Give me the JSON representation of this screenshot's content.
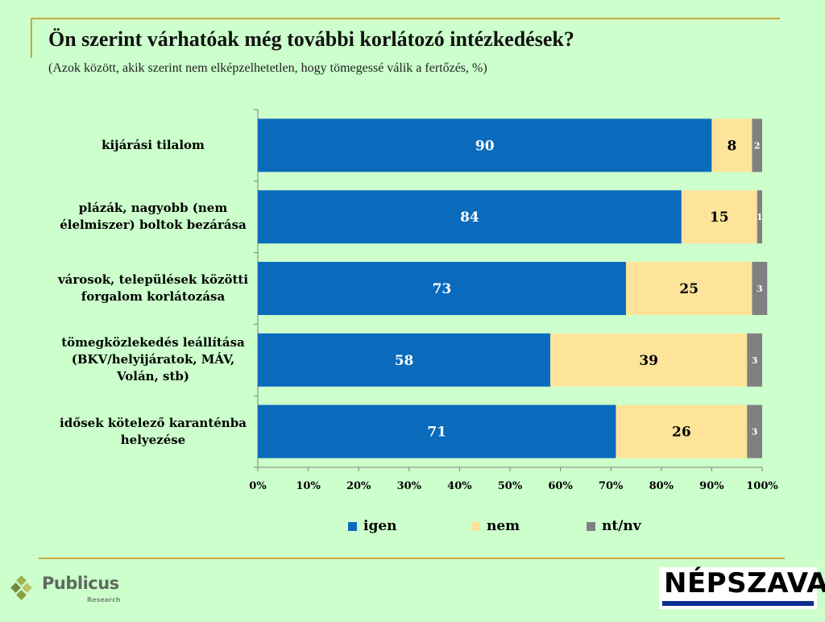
{
  "title": "Ön szerint várhatóak még további korlátozó intézkedések?",
  "subtitle": "(Azok között, akik szerint nem elképzelhetetlen, hogy tömegessé válik a fertőzés, %)",
  "chart_data": {
    "type": "bar",
    "orientation": "horizontal",
    "stacked": true,
    "categories": [
      "kijárási tilalom",
      "plázák, nagyobb (nem élelmiszer) boltok bezárása",
      "városok, települések közötti forgalom korlátozása",
      "tömegközlekedés leállítása (BKV/helyijáratok, MÁV, Volán, stb)",
      "idősek kötelező karanténba helyezése"
    ],
    "category_lines": [
      [
        "kijárási tilalom"
      ],
      [
        "plázák, nagyobb (nem",
        "élelmiszer) boltok bezárása"
      ],
      [
        "városok, települések közötti",
        "forgalom korlátozása"
      ],
      [
        "tömegközlekedés leállítása",
        "(BKV/helyijáratok, MÁV,",
        "Volán, stb)"
      ],
      [
        "idősek kötelező karanténba",
        "helyezése"
      ]
    ],
    "series": [
      {
        "name": "igen",
        "color": "#0a6bbd",
        "label_color": "#ffffff",
        "values": [
          90,
          84,
          73,
          58,
          71
        ]
      },
      {
        "name": "nem",
        "color": "#fde49a",
        "label_color": "#000000",
        "values": [
          8,
          15,
          25,
          39,
          26
        ]
      },
      {
        "name": "nt/nv",
        "color": "#808080",
        "label_color": "#ffffff",
        "values": [
          2,
          1,
          3,
          3,
          3
        ]
      }
    ],
    "xlim": [
      0,
      100
    ],
    "xticks": [
      "0%",
      "10%",
      "20%",
      "30%",
      "40%",
      "50%",
      "60%",
      "70%",
      "80%",
      "90%",
      "100%"
    ],
    "legend_position": "bottom",
    "grid": false
  },
  "logos": {
    "left": {
      "name": "Publicus",
      "sub": "Research"
    },
    "right": {
      "name": "NÉPSZAVA"
    }
  }
}
